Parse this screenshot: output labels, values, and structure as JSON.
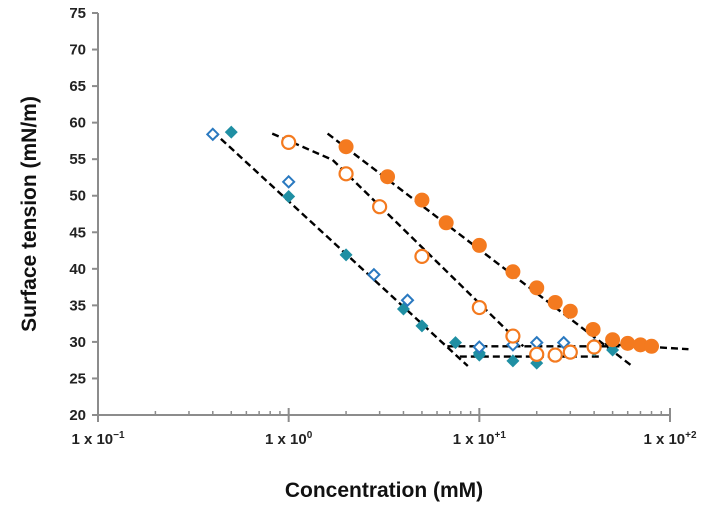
{
  "chart_data": {
    "type": "scatter",
    "title": "",
    "xlabel": "Concentration (mM)",
    "ylabel": "Surface tension (mN/m)",
    "xscale": "log",
    "xlim": [
      0.1,
      100
    ],
    "ylim": [
      20,
      75
    ],
    "grid": false,
    "legend": "none",
    "y_ticks": [
      20,
      25,
      30,
      35,
      40,
      45,
      50,
      55,
      60,
      65,
      70,
      75
    ],
    "x_ticks": [
      {
        "value": 0.1,
        "base": "1 x 10",
        "exp": "−1"
      },
      {
        "value": 1,
        "base": "1 x 10",
        "exp": "0"
      },
      {
        "value": 10,
        "base": "1 x 10",
        "exp": "+1"
      },
      {
        "value": 100,
        "base": "1 x 10",
        "exp": "+2"
      }
    ],
    "colors": {
      "teal": "#1f8fa3",
      "blue": "#2a79c0",
      "orange": "#f47a1f",
      "axis": "#8c8c8c",
      "trend": "#000000"
    },
    "series": [
      {
        "name": "filled-diamond",
        "marker": "diamond",
        "filled": true,
        "color": "#1f8fa3",
        "x": [
          0.5,
          1,
          2,
          4,
          5,
          7.5,
          10,
          10,
          15,
          20,
          25,
          40,
          50
        ],
        "y": [
          58.7,
          49.9,
          41.9,
          34.5,
          32.2,
          29.9,
          28.5,
          28.2,
          27.4,
          27.1,
          28.1,
          28.9,
          28.9
        ]
      },
      {
        "name": "open-diamond",
        "marker": "diamond",
        "filled": false,
        "color": "#2a79c0",
        "x": [
          0.4,
          1,
          2.8,
          4.2,
          10,
          15,
          20,
          27.7,
          40
        ],
        "y": [
          58.4,
          51.9,
          39.2,
          35.7,
          29.3,
          29.6,
          29.9,
          29.9,
          29.6
        ]
      },
      {
        "name": "open-circle",
        "marker": "circle",
        "filled": false,
        "color": "#f47a1f",
        "x": [
          1,
          2,
          3,
          5,
          10,
          15,
          20,
          25,
          30,
          40
        ],
        "y": [
          57.3,
          53.0,
          48.5,
          41.7,
          34.7,
          30.8,
          28.3,
          28.2,
          28.6,
          29.3
        ]
      },
      {
        "name": "filled-circle",
        "marker": "circle",
        "filled": true,
        "color": "#f47a1f",
        "x": [
          2,
          3.3,
          5,
          6.7,
          10,
          15,
          20,
          25,
          30,
          39.5,
          50,
          60,
          70,
          80
        ],
        "y": [
          56.7,
          52.6,
          49.4,
          46.3,
          43.2,
          39.6,
          37.4,
          35.4,
          34.2,
          31.7,
          30.3,
          29.8,
          29.6,
          29.4
        ]
      }
    ],
    "trendlines": [
      {
        "name": "diamond-slope",
        "points": [
          [
            0.4,
            58.8
          ],
          [
            8.7,
            26.7
          ]
        ]
      },
      {
        "name": "diamond-plateau-upper",
        "points": [
          [
            6.8,
            29.4
          ],
          [
            60,
            29.4
          ]
        ]
      },
      {
        "name": "diamond-plateau-lower",
        "points": [
          [
            7.9,
            28.0
          ],
          [
            43,
            28.0
          ]
        ]
      },
      {
        "name": "open-circle-slope",
        "points": [
          [
            0.82,
            58.5
          ],
          [
            1.7,
            54.9
          ],
          [
            17,
            29.4
          ]
        ]
      },
      {
        "name": "filled-circle-slope",
        "points": [
          [
            1.6,
            58.5
          ],
          [
            64,
            26.6
          ]
        ]
      },
      {
        "name": "filled-circle-plateau",
        "points": [
          [
            40,
            29.8
          ],
          [
            125,
            29.0
          ]
        ]
      }
    ]
  }
}
